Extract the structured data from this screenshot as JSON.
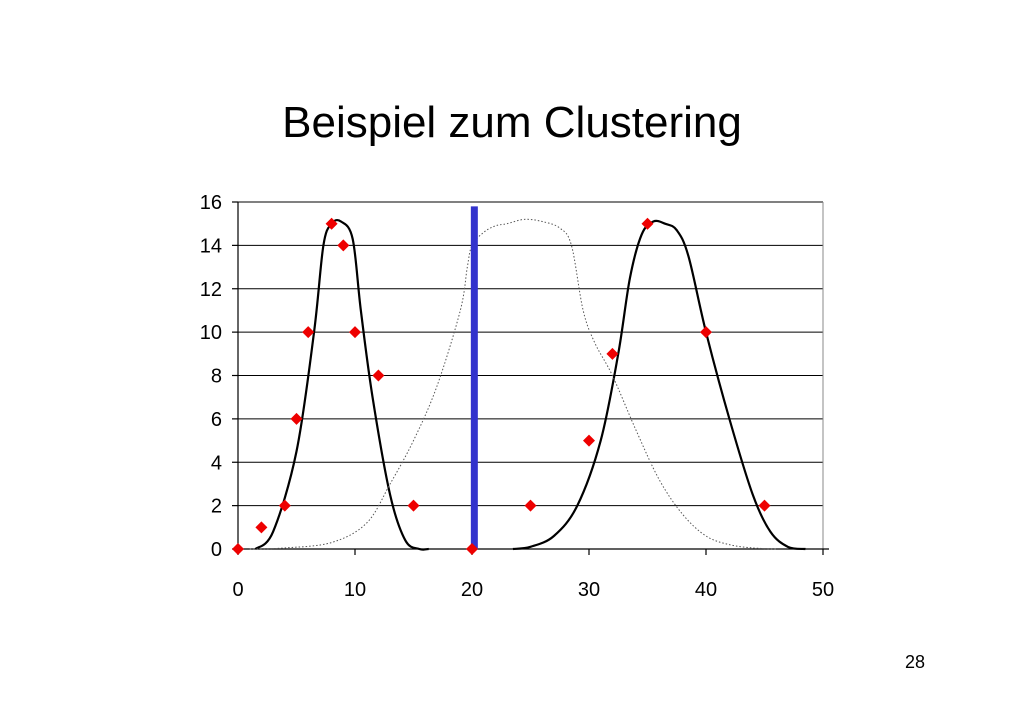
{
  "slide": {
    "title": "Beispiel zum Clustering",
    "page_number": "28"
  },
  "chart_data": {
    "type": "scatter",
    "title": "",
    "xlabel": "",
    "ylabel": "",
    "xlim": [
      0,
      50
    ],
    "ylim": [
      0,
      16
    ],
    "x_ticks": [
      0,
      10,
      20,
      30,
      40,
      50
    ],
    "y_ticks": [
      0,
      2,
      4,
      6,
      8,
      10,
      12,
      14,
      16
    ],
    "grid": "horizontal",
    "legend": "none",
    "points": [
      {
        "x": 0,
        "y": 0
      },
      {
        "x": 2,
        "y": 1
      },
      {
        "x": 4,
        "y": 2
      },
      {
        "x": 5,
        "y": 6
      },
      {
        "x": 6,
        "y": 10
      },
      {
        "x": 8,
        "y": 15
      },
      {
        "x": 9,
        "y": 14
      },
      {
        "x": 10,
        "y": 10
      },
      {
        "x": 12,
        "y": 8
      },
      {
        "x": 15,
        "y": 2
      },
      {
        "x": 20,
        "y": 0
      },
      {
        "x": 25,
        "y": 2
      },
      {
        "x": 30,
        "y": 5
      },
      {
        "x": 32,
        "y": 9
      },
      {
        "x": 35,
        "y": 15
      },
      {
        "x": 40,
        "y": 10
      },
      {
        "x": 45,
        "y": 2
      }
    ],
    "curves": [
      {
        "style": "solid",
        "x": [
          1.5,
          3,
          5,
          6.5,
          7.3,
          8,
          8.8,
          9.8,
          10.5,
          11.5,
          13,
          14.3,
          15.5,
          16.3
        ],
        "y": [
          0,
          0.8,
          4.5,
          10,
          14,
          15,
          15.1,
          14.3,
          11,
          7,
          2.5,
          0.4,
          0,
          0
        ]
      },
      {
        "style": "solid",
        "x": [
          23.5,
          25,
          27,
          29,
          31,
          32.5,
          33.5,
          34.5,
          35.5,
          36.5,
          37.5,
          38.5,
          40,
          42,
          44,
          45.5,
          47,
          48.5
        ],
        "y": [
          0,
          0.1,
          0.6,
          2,
          5,
          9,
          12.5,
          14.5,
          15.1,
          15,
          14.7,
          13.5,
          10,
          6,
          2.5,
          0.8,
          0.1,
          0
        ]
      },
      {
        "style": "dotted",
        "x": [
          1,
          4,
          8,
          11,
          13,
          15,
          17,
          19,
          19.6,
          20,
          21,
          22,
          23,
          24.5,
          26,
          27.5,
          28.5,
          29.5,
          30.5,
          32,
          34,
          36,
          38,
          40,
          42,
          44,
          46
        ],
        "y": [
          0,
          0.05,
          0.3,
          1.2,
          3,
          5,
          7.5,
          11,
          13,
          14,
          14.6,
          14.9,
          15,
          15.2,
          15.1,
          14.8,
          14,
          11,
          9.5,
          8,
          5.5,
          3.2,
          1.6,
          0.6,
          0.2,
          0.05,
          0
        ]
      }
    ],
    "threshold_line": {
      "x": 20.2,
      "y": [
        0,
        15.8
      ],
      "color": "#3333cc"
    },
    "colors": {
      "points": "#ee0000",
      "curves": "#000000",
      "threshold": "#3333cc",
      "grid": "#000000"
    }
  }
}
